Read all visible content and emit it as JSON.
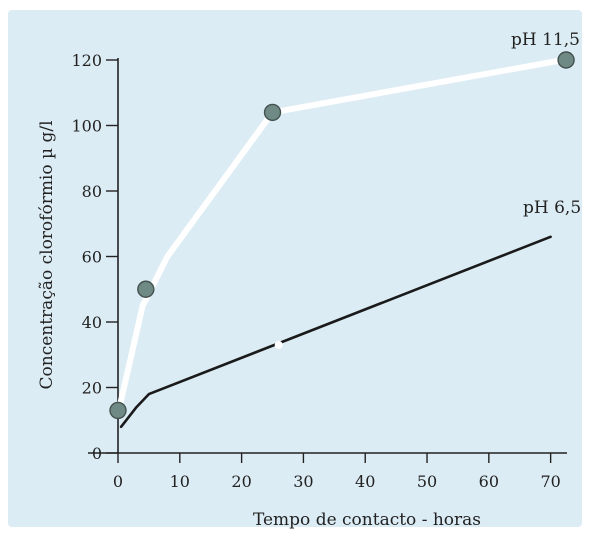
{
  "chart_data": {
    "type": "line",
    "xlabel": "Tempo de contacto - horas",
    "ylabel": "Concentração clorofórmio µ g/l",
    "xlim": [
      0,
      72
    ],
    "ylim": [
      0,
      120
    ],
    "xticks": [
      0,
      10,
      20,
      30,
      40,
      50,
      60,
      70
    ],
    "yticks": [
      0,
      20,
      40,
      60,
      80,
      100,
      120
    ],
    "grid": false,
    "colors": {
      "background": "#dcecf4",
      "axis": "#222222",
      "ph115": "#ffffff",
      "ph65": "#1a1a1a",
      "marker": "#6f8a84"
    },
    "series": [
      {
        "name": "pH 11,5",
        "line": [
          [
            0,
            12
          ],
          [
            4,
            45
          ],
          [
            8,
            60
          ],
          [
            25,
            104
          ],
          [
            72,
            120
          ]
        ],
        "points": [
          [
            0,
            13
          ],
          [
            4.5,
            50
          ],
          [
            25,
            104
          ],
          [
            72.5,
            120
          ]
        ]
      },
      {
        "name": "pH 6,5",
        "line": [
          [
            0.5,
            8
          ],
          [
            3,
            14
          ],
          [
            5,
            18
          ],
          [
            70,
            66
          ]
        ],
        "points": []
      }
    ]
  }
}
